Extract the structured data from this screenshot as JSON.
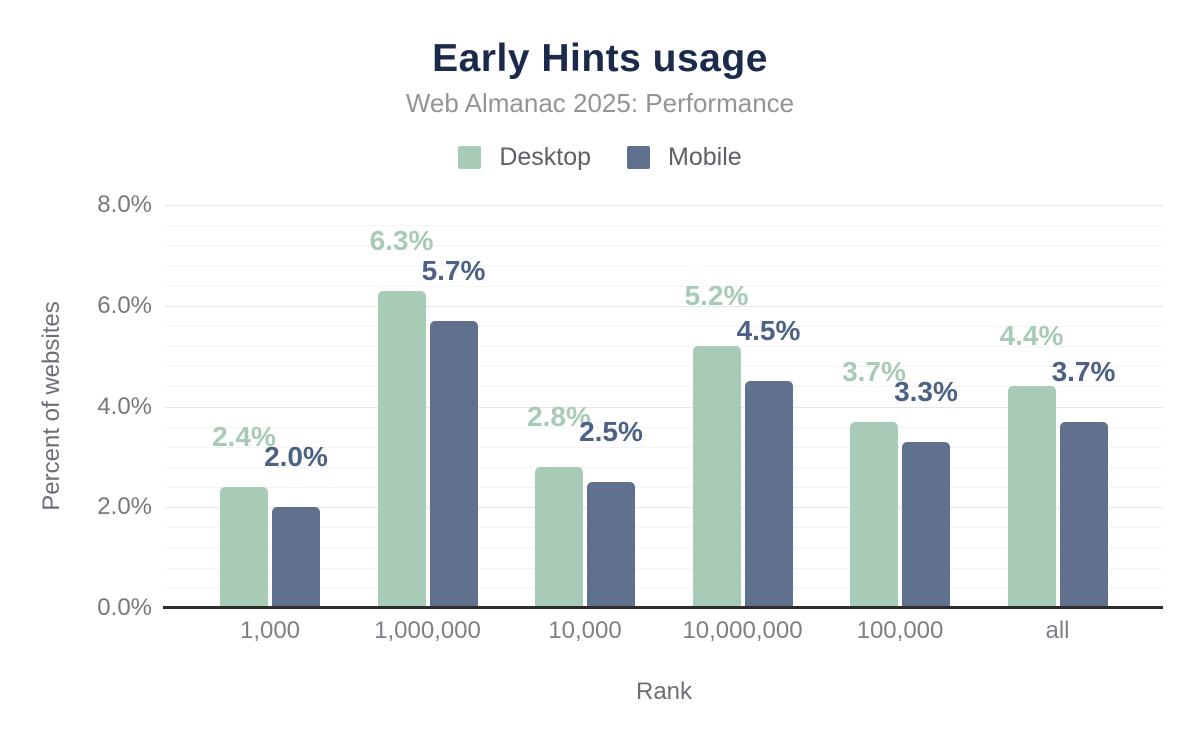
{
  "header": {
    "title": "Early Hints usage",
    "subtitle": "Web Almanac 2025: Performance"
  },
  "legend": {
    "items": [
      {
        "name": "desktop",
        "label": "Desktop",
        "color": "#a8cbb7"
      },
      {
        "name": "mobile",
        "label": "Mobile",
        "color": "#5f718c"
      }
    ]
  },
  "chart_data": {
    "type": "bar",
    "title": "Early Hints usage",
    "subtitle": "Web Almanac 2025: Performance",
    "categories": [
      "1,000",
      "1,000,000",
      "10,000",
      "10,000,000",
      "100,000",
      "all"
    ],
    "series": [
      {
        "name": "Desktop",
        "color": "#a8cbb7",
        "label_color": "#a8cbb7",
        "values": [
          2.4,
          6.3,
          2.8,
          5.2,
          3.7,
          4.4
        ],
        "labels": [
          "2.4%",
          "6.3%",
          "2.8%",
          "5.2%",
          "3.7%",
          "4.4%"
        ]
      },
      {
        "name": "Mobile",
        "color": "#5f718c",
        "label_color": "#4d6187",
        "values": [
          2.0,
          5.7,
          2.5,
          4.5,
          3.3,
          3.7
        ],
        "labels": [
          "2.0%",
          "5.7%",
          "2.5%",
          "4.5%",
          "3.3%",
          "3.7%"
        ]
      }
    ],
    "xlabel": "Rank",
    "ylabel": "Percent of websites",
    "ylim": [
      0,
      8
    ],
    "yticks": [
      {
        "value": 0,
        "label": "0.0%"
      },
      {
        "value": 2,
        "label": "2.0%"
      },
      {
        "value": 4,
        "label": "4.0%"
      },
      {
        "value": 6,
        "label": "6.0%"
      },
      {
        "value": 8,
        "label": "8.0%"
      }
    ],
    "grid": {
      "minor_step_pct": 0.4,
      "major_step_pct": 2,
      "grid_on": true
    },
    "legend_position": "top"
  },
  "colors": {
    "bar_desktop": "#a8cbb7",
    "bar_mobile": "#5f718c",
    "label_desktop": "#a8cbb7",
    "label_mobile": "#4d6187",
    "title_color": "#1b2a4b",
    "subtitle_color": "#949494",
    "tick_color": "#75787d",
    "cat_color": "#7c8086",
    "legend_color": "#5d6166",
    "axis_title_color": "#6b7077",
    "axis_line_color": "#2d2d2d",
    "grid_minor": "#f4f4f4",
    "grid_major": "#e7e7e7",
    "bg": "#ffffff"
  }
}
